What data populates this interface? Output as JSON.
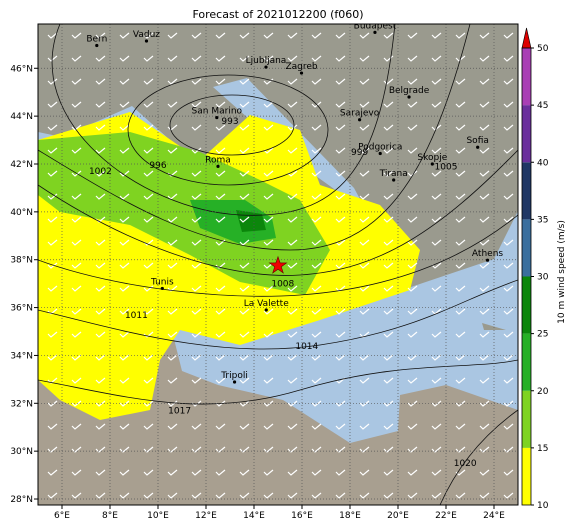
{
  "title": "Forecast of 2021012200 (f060)",
  "map": {
    "lonlim": [
      5,
      25
    ],
    "latlim": [
      27.75,
      47.85
    ],
    "lonticks": [
      {
        "value": 6,
        "label": "6°E"
      },
      {
        "value": 8,
        "label": "8°E"
      },
      {
        "value": 10,
        "label": "10°E"
      },
      {
        "value": 12,
        "label": "12°E"
      },
      {
        "value": 14,
        "label": "14°E"
      },
      {
        "value": 16,
        "label": "16°E"
      },
      {
        "value": 18,
        "label": "18°E"
      },
      {
        "value": 20,
        "label": "20°E"
      },
      {
        "value": 22,
        "label": "22°E"
      },
      {
        "value": 24,
        "label": "24°E"
      }
    ],
    "latticks": [
      {
        "value": 28,
        "label": "28°N"
      },
      {
        "value": 30,
        "label": "30°N"
      },
      {
        "value": 32,
        "label": "32°N"
      },
      {
        "value": 34,
        "label": "34°N"
      },
      {
        "value": 36,
        "label": "36°N"
      },
      {
        "value": 38,
        "label": "38°N"
      },
      {
        "value": 40,
        "label": "40°N"
      },
      {
        "value": 42,
        "label": "42°N"
      },
      {
        "value": 44,
        "label": "44°N"
      },
      {
        "value": 46,
        "label": "46°N"
      }
    ],
    "grid": true,
    "cities": [
      {
        "name": "Bern",
        "lon": 7.45,
        "lat": 46.95
      },
      {
        "name": "Vaduz",
        "lon": 9.52,
        "lat": 47.14
      },
      {
        "name": "Budapest",
        "lon": 19.04,
        "lat": 47.5
      },
      {
        "name": "Ljubljana",
        "lon": 14.5,
        "lat": 46.05
      },
      {
        "name": "Zagreb",
        "lon": 15.98,
        "lat": 45.8
      },
      {
        "name": "Belgrade",
        "lon": 20.46,
        "lat": 44.8
      },
      {
        "name": "Sarajevo",
        "lon": 18.4,
        "lat": 43.85
      },
      {
        "name": "San Marino",
        "lon": 12.45,
        "lat": 43.94
      },
      {
        "name": "Podgorica",
        "lon": 19.26,
        "lat": 42.44
      },
      {
        "name": "Sofia",
        "lon": 23.32,
        "lat": 42.7
      },
      {
        "name": "Skopje",
        "lon": 21.43,
        "lat": 42.0
      },
      {
        "name": "Roma",
        "lon": 12.5,
        "lat": 41.9
      },
      {
        "name": "Tirana",
        "lon": 19.82,
        "lat": 41.33
      },
      {
        "name": "Athens",
        "lon": 23.73,
        "lat": 37.98
      },
      {
        "name": "Tunis",
        "lon": 10.18,
        "lat": 36.8
      },
      {
        "name": "La Valette",
        "lon": 14.51,
        "lat": 35.9
      },
      {
        "name": "Tripoli",
        "lon": 13.19,
        "lat": 32.89
      }
    ],
    "isobar_labels": [
      {
        "value": 993,
        "lon": 13.0,
        "lat": 43.8
      },
      {
        "value": 996,
        "lon": 10.0,
        "lat": 41.95
      },
      {
        "value": 999,
        "lon": 18.4,
        "lat": 42.5
      },
      {
        "value": 1002,
        "lon": 7.6,
        "lat": 41.7
      },
      {
        "value": 1005,
        "lon": 22.0,
        "lat": 41.9
      },
      {
        "value": 1008,
        "lon": 15.2,
        "lat": 37.0
      },
      {
        "value": 1011,
        "lon": 9.1,
        "lat": 35.7
      },
      {
        "value": 1014,
        "lon": 16.2,
        "lat": 34.4
      },
      {
        "value": 1017,
        "lon": 10.9,
        "lat": 31.7
      },
      {
        "value": 1020,
        "lon": 22.8,
        "lat": 29.5
      }
    ],
    "star": {
      "lon": 15.0,
      "lat": 37.75,
      "color": "#ee0000"
    }
  },
  "colorbar": {
    "label": "10 m wind speed (m/s)",
    "ticks": [
      10,
      15,
      20,
      25,
      30,
      35,
      40,
      45,
      50
    ],
    "colors": [
      "#ffff00",
      "#7fd321",
      "#26b026",
      "#0b860b",
      "#3a6f9e",
      "#1f3765",
      "#6a2f9c",
      "#a93fb5"
    ],
    "extend_color": "#dd0000"
  }
}
